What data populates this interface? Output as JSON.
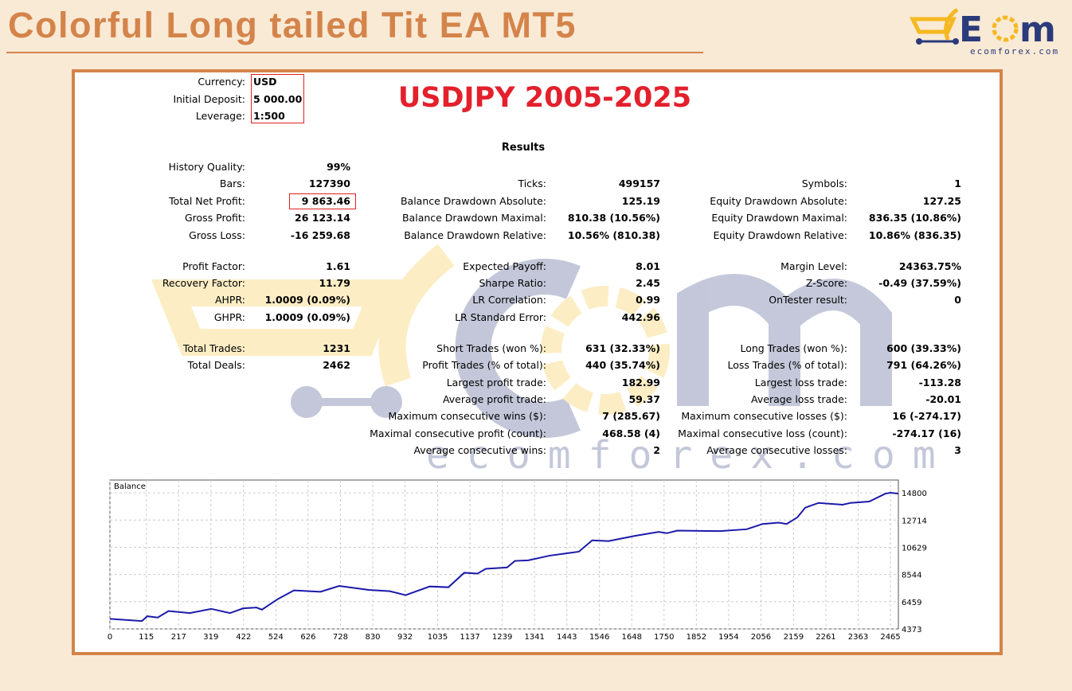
{
  "title": "Colorful Long tailed Tit EA MT5",
  "logo": {
    "text": "ECOM",
    "site": "ecomforex.com"
  },
  "watermark": {
    "text": "ECOM",
    "site": "ecomforex.com"
  },
  "colors": {
    "accent": "#d4844a",
    "title_red": "#e3202c",
    "balance_line": "#1a1aaa",
    "logo_navy": "#2b3a7a",
    "logo_yellow": "#f5b820"
  },
  "header": {
    "currency_label": "Currency:",
    "currency": "USD",
    "deposit_label": "Initial Deposit:",
    "deposit": "5 000.00",
    "leverage_label": "Leverage:",
    "leverage": "1:500",
    "symbol_period": "USDJPY 2005-2025"
  },
  "results_title": "Results",
  "groups": [
    [
      [
        [
          "History Quality:",
          "99%"
        ],
        null,
        null
      ],
      [
        [
          "Bars:",
          "127390"
        ],
        [
          "Ticks:",
          "499157"
        ],
        [
          "Symbols:",
          "1"
        ]
      ],
      [
        [
          "Total Net Profit:",
          "9 863.46"
        ],
        [
          "Balance Drawdown Absolute:",
          "125.19"
        ],
        [
          "Equity Drawdown Absolute:",
          "127.25"
        ]
      ],
      [
        [
          "Gross Profit:",
          "26 123.14"
        ],
        [
          "Balance Drawdown Maximal:",
          "810.38 (10.56%)"
        ],
        [
          "Equity Drawdown Maximal:",
          "836.35 (10.86%)"
        ]
      ],
      [
        [
          "Gross Loss:",
          "-16 259.68"
        ],
        [
          "Balance Drawdown Relative:",
          "10.56% (810.38)"
        ],
        [
          "Equity Drawdown Relative:",
          "10.86% (836.35)"
        ]
      ]
    ],
    [
      [
        [
          "Profit Factor:",
          "1.61"
        ],
        [
          "Expected Payoff:",
          "8.01"
        ],
        [
          "Margin Level:",
          "24363.75%"
        ]
      ],
      [
        [
          "Recovery Factor:",
          "11.79"
        ],
        [
          "Sharpe Ratio:",
          "2.45"
        ],
        [
          "Z-Score:",
          "-0.49 (37.59%)"
        ]
      ],
      [
        [
          "AHPR:",
          "1.0009 (0.09%)"
        ],
        [
          "LR Correlation:",
          "0.99"
        ],
        [
          "OnTester result:",
          "0"
        ]
      ],
      [
        [
          "GHPR:",
          "1.0009 (0.09%)"
        ],
        [
          "LR Standard Error:",
          "442.96"
        ],
        null
      ]
    ],
    [
      [
        [
          "Total Trades:",
          "1231"
        ],
        [
          "Short Trades (won %):",
          "631 (32.33%)"
        ],
        [
          "Long Trades (won %):",
          "600 (39.33%)"
        ]
      ],
      [
        [
          "Total Deals:",
          "2462"
        ],
        [
          "Profit Trades (% of total):",
          "440 (35.74%)"
        ],
        [
          "Loss Trades (% of total):",
          "791 (64.26%)"
        ]
      ],
      [
        null,
        [
          "Largest profit trade:",
          "182.99"
        ],
        [
          "Largest loss trade:",
          "-113.28"
        ]
      ],
      [
        null,
        [
          "Average profit trade:",
          "59.37"
        ],
        [
          "Average loss trade:",
          "-20.01"
        ]
      ],
      [
        null,
        [
          "Maximum consecutive wins ($):",
          "7 (285.67)"
        ],
        [
          "Maximum consecutive losses ($):",
          "16 (-274.17)"
        ]
      ],
      [
        null,
        [
          "Maximal consecutive profit (count):",
          "468.58 (4)"
        ],
        [
          "Maximal consecutive loss (count):",
          "-274.17 (16)"
        ]
      ],
      [
        null,
        [
          "Average consecutive wins:",
          "2"
        ],
        [
          "Average consecutive losses:",
          "3"
        ]
      ]
    ]
  ],
  "chart_data": {
    "type": "line",
    "title": "Balance",
    "series": [
      {
        "name": "Balance",
        "x": [
          0,
          101,
          118,
          151,
          185,
          252,
          320,
          379,
          421,
          463,
          480,
          530,
          581,
          665,
          724,
          817,
          884,
          934,
          968,
          1010,
          1069,
          1119,
          1161,
          1187,
          1254,
          1279,
          1321,
          1389,
          1439,
          1481,
          1523,
          1574,
          1658,
          1733,
          1759,
          1792,
          1927,
          2011,
          2061,
          2112,
          2137,
          2171,
          2196,
          2238,
          2314,
          2339,
          2398,
          2449,
          2465,
          2490
        ],
        "y": [
          5141,
          4979,
          5343,
          5242,
          5747,
          5585,
          5908,
          5585,
          5949,
          6010,
          5848,
          6656,
          7322,
          7221,
          7666,
          7363,
          7262,
          6959,
          7262,
          7625,
          7565,
          8676,
          8615,
          8979,
          9080,
          9585,
          9625,
          9989,
          10150,
          10292,
          11160,
          11100,
          11504,
          11807,
          11706,
          11908,
          11868,
          12009,
          12413,
          12514,
          12413,
          12918,
          13665,
          14029,
          13887,
          14029,
          14130,
          14739,
          14800,
          14740
        ]
      }
    ],
    "xticks": [
      0,
      115,
      217,
      319,
      422,
      524,
      626,
      728,
      830,
      932,
      1035,
      1137,
      1239,
      1341,
      1443,
      1546,
      1648,
      1750,
      1852,
      1954,
      2056,
      2159,
      2261,
      2363,
      2465
    ],
    "yticks": [
      4373,
      6459,
      8544,
      10629,
      12714,
      14800
    ],
    "xlim": [
      0,
      2490
    ],
    "ylim": [
      4373,
      15780
    ],
    "grid": true
  }
}
